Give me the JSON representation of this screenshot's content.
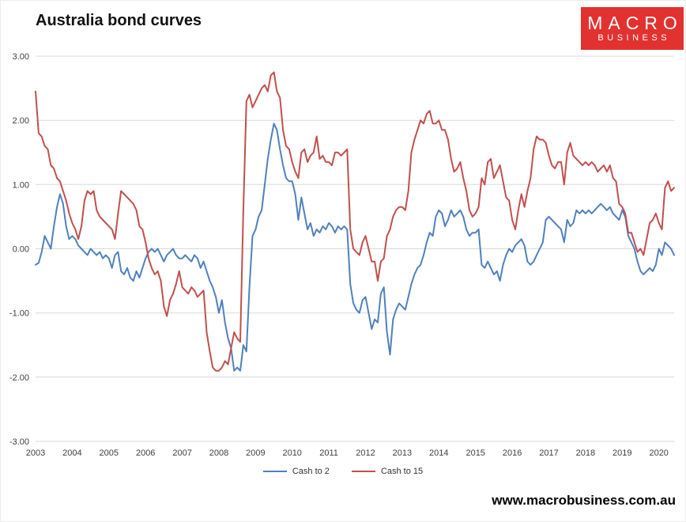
{
  "header": {
    "title": "Australia bond curves"
  },
  "logo": {
    "line1": "MACRO",
    "line2": "BUSINESS",
    "bg_color": "#e23230"
  },
  "footer": {
    "url": "www.macrobusiness.com.au"
  },
  "chart_data": {
    "type": "line",
    "title": "Australia bond curves",
    "xlabel": "",
    "ylabel": "",
    "grid": true,
    "legend_position": "bottom",
    "ylim": [
      -3,
      3
    ],
    "y_ticks": [
      "3.00",
      "2.00",
      "1.00",
      "0.00",
      "-1.00",
      "-2.00",
      "-3.00"
    ],
    "y_tick_values": [
      3,
      2,
      1,
      0,
      -1,
      -2,
      -3
    ],
    "x_ticks": [
      "2003",
      "2004",
      "2005",
      "2006",
      "2007",
      "2008",
      "2009",
      "2010",
      "2011",
      "2012",
      "2013",
      "2014",
      "2015",
      "2016",
      "2017",
      "2018",
      "2019",
      "2020"
    ],
    "x_start_year": 2003,
    "x_step_months": 1,
    "colors": {
      "grid": "#d9d9d9"
    },
    "series": [
      {
        "name": "Cash to 2",
        "color": "#4f81bd",
        "values": [
          -0.25,
          -0.22,
          -0.05,
          0.2,
          0.1,
          0,
          0.35,
          0.65,
          0.85,
          0.7,
          0.35,
          0.15,
          0.2,
          0.15,
          0.05,
          0,
          -0.05,
          -0.1,
          0,
          -0.05,
          -0.1,
          -0.05,
          -0.15,
          -0.1,
          -0.15,
          -0.3,
          -0.1,
          -0.05,
          -0.35,
          -0.4,
          -0.3,
          -0.45,
          -0.5,
          -0.35,
          -0.45,
          -0.3,
          -0.15,
          -0.05,
          0,
          -0.05,
          0,
          -0.1,
          -0.2,
          -0.1,
          -0.05,
          0,
          -0.1,
          -0.15,
          -0.15,
          -0.1,
          -0.15,
          -0.2,
          -0.1,
          -0.15,
          -0.3,
          -0.2,
          -0.35,
          -0.5,
          -0.6,
          -0.75,
          -1,
          -0.8,
          -1.15,
          -1.4,
          -1.55,
          -1.9,
          -1.85,
          -1.9,
          -1.5,
          -1.6,
          -0.6,
          0.2,
          0.3,
          0.5,
          0.6,
          1,
          1.4,
          1.7,
          1.95,
          1.85,
          1.55,
          1.3,
          1.1,
          1.05,
          1.05,
          0.85,
          0.45,
          0.8,
          0.55,
          0.3,
          0.4,
          0.2,
          0.3,
          0.25,
          0.35,
          0.3,
          0.4,
          0.35,
          0.25,
          0.35,
          0.3,
          0.35,
          0.3,
          -0.55,
          -0.85,
          -0.95,
          -1,
          -0.8,
          -0.75,
          -1,
          -1.25,
          -1.1,
          -1.15,
          -0.7,
          -0.6,
          -1.3,
          -1.65,
          -1.1,
          -0.95,
          -0.85,
          -0.9,
          -0.95,
          -0.75,
          -0.55,
          -0.4,
          -0.3,
          -0.25,
          -0.1,
          0.1,
          0.25,
          0.2,
          0.5,
          0.6,
          0.55,
          0.35,
          0.45,
          0.6,
          0.5,
          0.55,
          0.6,
          0.5,
          0.3,
          0.2,
          0.25,
          0.25,
          0.3,
          -0.25,
          -0.3,
          -0.2,
          -0.3,
          -0.4,
          -0.35,
          -0.5,
          -0.25,
          -0.1,
          0,
          -0.05,
          0.05,
          0.1,
          0.15,
          0.05,
          -0.2,
          -0.25,
          -0.2,
          -0.1,
          0,
          0.1,
          0.45,
          0.5,
          0.45,
          0.4,
          0.35,
          0.3,
          0.1,
          0.45,
          0.35,
          0.4,
          0.6,
          0.55,
          0.6,
          0.55,
          0.6,
          0.55,
          0.6,
          0.65,
          0.7,
          0.65,
          0.6,
          0.65,
          0.55,
          0.5,
          0.45,
          0.6,
          0.5,
          0.2,
          0.1,
          0,
          -0.2,
          -0.35,
          -0.4,
          -0.35,
          -0.3,
          -0.35,
          -0.25,
          0,
          -0.1,
          0.1,
          0.05,
          0,
          -0.1
        ]
      },
      {
        "name": "Cash to 15",
        "color": "#c0504d",
        "values": [
          2.45,
          1.8,
          1.75,
          1.6,
          1.55,
          1.3,
          1.25,
          1.1,
          1.05,
          0.9,
          0.75,
          0.55,
          0.4,
          0.3,
          0.15,
          0.35,
          0.75,
          0.9,
          0.85,
          0.9,
          0.6,
          0.5,
          0.45,
          0.4,
          0.35,
          0.3,
          0.15,
          0.55,
          0.9,
          0.85,
          0.8,
          0.75,
          0.7,
          0.6,
          0.35,
          0.3,
          0.1,
          -0.15,
          -0.3,
          -0.4,
          -0.35,
          -0.5,
          -0.9,
          -1.05,
          -0.8,
          -0.7,
          -0.55,
          -0.35,
          -0.6,
          -0.65,
          -0.7,
          -0.6,
          -0.65,
          -0.75,
          -0.7,
          -0.65,
          -1.3,
          -1.6,
          -1.85,
          -1.9,
          -1.9,
          -1.85,
          -1.75,
          -1.8,
          -1.55,
          -1.3,
          -1.4,
          -1.45,
          0.6,
          2.3,
          2.4,
          2.2,
          2.3,
          2.4,
          2.5,
          2.55,
          2.45,
          2.7,
          2.75,
          2.45,
          2.35,
          1.85,
          1.6,
          1.55,
          1.35,
          1.2,
          1.1,
          1.5,
          1.55,
          1.35,
          1.45,
          1.5,
          1.75,
          1.4,
          1.45,
          1.35,
          1.35,
          1.3,
          1.5,
          1.5,
          1.45,
          1.5,
          1.55,
          0.3,
          0,
          -0.05,
          -0.1,
          0.1,
          0.2,
          0,
          -0.2,
          -0.2,
          -0.5,
          -0.2,
          -0.15,
          0.2,
          0.3,
          0.5,
          0.6,
          0.65,
          0.65,
          0.6,
          0.9,
          1.5,
          1.7,
          1.85,
          2,
          1.95,
          2.1,
          2.15,
          1.95,
          1.95,
          2,
          1.85,
          1.85,
          1.7,
          1.4,
          1.2,
          1.25,
          1.35,
          1.1,
          0.9,
          0.6,
          0.5,
          0.55,
          0.65,
          1.1,
          1,
          1.35,
          1.4,
          1.1,
          1.2,
          1.3,
          1.05,
          0.8,
          0.75,
          0.45,
          0.3,
          0.6,
          0.85,
          0.65,
          0.9,
          1.1,
          1.55,
          1.75,
          1.7,
          1.7,
          1.65,
          1.45,
          1.3,
          1.25,
          1.35,
          1.35,
          1,
          1.5,
          1.65,
          1.45,
          1.4,
          1.35,
          1.3,
          1.35,
          1.3,
          1.35,
          1.3,
          1.2,
          1.25,
          1.3,
          1.2,
          1.3,
          1.1,
          1.05,
          0.7,
          0.65,
          0.55,
          0.25,
          0.25,
          0.1,
          -0.05,
          0,
          -0.1,
          0.15,
          0.4,
          0.45,
          0.55,
          0.4,
          0.3,
          0.95,
          1.05,
          0.9,
          0.95
        ]
      }
    ]
  }
}
